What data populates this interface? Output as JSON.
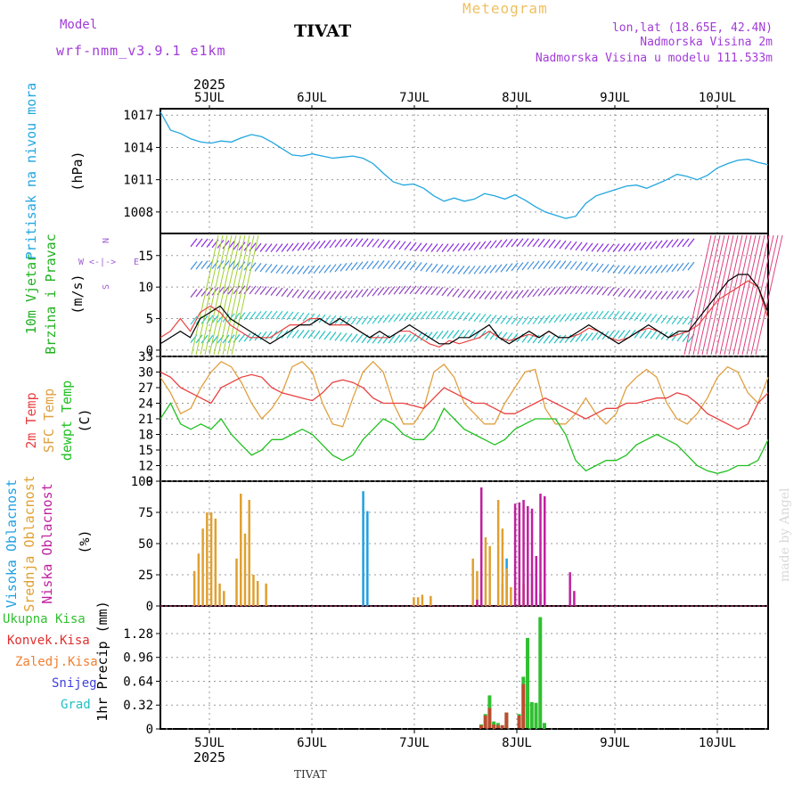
{
  "header": {
    "model_label": "Model",
    "model_name": "wrf-nmm_v3.9.1 e1km",
    "title": "TIVAT",
    "meteogram_label": "Meteogram",
    "lonlat": "lon,lat (18.65E, 42.4N)",
    "elevation": "Nadmorska Visina 2m",
    "model_elevation": "Nadmorska Visina u modelu 111.533m"
  },
  "footer": {
    "station": "TIVAT",
    "credit": "made by Angel"
  },
  "colors": {
    "pressure": "#22a6e0",
    "t2m": "#e84040",
    "sfc": "#e0a040",
    "dew": "#20c020",
    "high": "#20a0e0",
    "mid": "#e0a030",
    "low": "#c020a0",
    "total": "#30c030",
    "conv": "#e03030"
  },
  "chart_data": [
    {
      "id": "pressure",
      "type": "line",
      "ylabel": [
        "Pritisak na nivou mora",
        "(hPa)"
      ],
      "ylim": [
        1006,
        1017.6
      ],
      "yticks": [
        1008,
        1011,
        1014,
        1017
      ],
      "xlim": [
        0,
        144
      ],
      "series": [
        {
          "values": [
            1017.3,
            1015.6,
            1015.3,
            1014.8,
            1014.5,
            1014.4,
            1014.6,
            1014.5,
            1014.9,
            1015.2,
            1015.0,
            1014.5,
            1013.9,
            1013.3,
            1013.2,
            1013.4,
            1013.2,
            1013.0,
            1013.1,
            1013.2,
            1013.0,
            1012.5,
            1011.6,
            1010.8,
            1010.5,
            1010.6,
            1010.2,
            1009.5,
            1009.0,
            1009.3,
            1009.0,
            1009.2,
            1009.7,
            1009.5,
            1009.2,
            1009.6,
            1009.1,
            1008.5,
            1008.0,
            1007.7,
            1007.4,
            1007.6,
            1008.8,
            1009.5,
            1009.8,
            1010.1,
            1010.4,
            1010.5,
            1010.2,
            1010.6,
            1011.0,
            1011.5,
            1011.3,
            1011.0,
            1011.4,
            1012.1,
            1012.5,
            1012.8,
            1012.9,
            1012.6,
            1012.4
          ]
        }
      ]
    },
    {
      "id": "wind",
      "type": "line",
      "ylabel": [
        "10m Vjetar",
        "Brzina i Pravac",
        "(m/s)"
      ],
      "ylim": [
        -1,
        18.5
      ],
      "yticks": [
        0,
        5,
        10,
        15
      ],
      "compass": [
        "N",
        "W",
        "E",
        "S"
      ],
      "series": [
        {
          "values": [
            1,
            2,
            3,
            2,
            5,
            6,
            7,
            5,
            4,
            3,
            2,
            1,
            2,
            3,
            4,
            4,
            5,
            4,
            5,
            4,
            3,
            2,
            3,
            2,
            3,
            4,
            3,
            2,
            1,
            1,
            2,
            2,
            3,
            4,
            2,
            1,
            2,
            3,
            2,
            3,
            2,
            2,
            3,
            4,
            3,
            2,
            1,
            2,
            3,
            4,
            3,
            2,
            3,
            3,
            5,
            7,
            9,
            11,
            12,
            12,
            10,
            6
          ]
        },
        {
          "values": [
            2,
            3,
            5,
            3,
            6,
            7,
            6,
            4,
            3,
            2,
            2,
            2,
            3,
            4,
            4,
            5,
            5,
            4,
            4,
            4,
            3,
            2,
            2,
            2,
            3,
            3,
            2,
            1,
            0.5,
            1.5,
            1,
            1.5,
            2,
            3,
            2,
            1.5,
            2,
            2.5,
            2,
            3,
            2,
            2,
            2.5,
            3.5,
            3,
            2,
            1.5,
            2,
            3,
            3.5,
            3,
            2,
            2.5,
            3,
            4,
            6,
            8,
            9,
            10,
            11,
            10,
            5
          ]
        }
      ]
    },
    {
      "id": "temp",
      "type": "line",
      "ylabel": [
        "2m Temp",
        "SFC Temp",
        "dewpt Temp",
        "(C)"
      ],
      "ylim": [
        9,
        33
      ],
      "yticks": [
        9,
        12,
        15,
        18,
        21,
        24,
        27,
        30,
        33
      ],
      "series": [
        {
          "values": [
            30,
            29,
            27,
            26,
            25,
            24,
            27,
            28,
            29,
            29.5,
            29,
            27,
            26,
            25.5,
            25,
            24.5,
            26,
            28,
            28.5,
            28,
            27,
            25,
            24,
            24,
            24,
            23.5,
            23,
            25,
            27,
            26,
            25,
            24,
            24,
            23,
            22,
            22,
            23,
            24,
            25,
            24,
            23,
            22,
            21,
            22,
            23,
            23,
            24,
            24,
            24.5,
            25,
            25,
            26,
            25.5,
            24,
            22,
            21,
            20,
            19,
            20,
            24,
            26
          ]
        },
        {
          "values": [
            29,
            26,
            22,
            23,
            27,
            30,
            32,
            31,
            28,
            24,
            21,
            23,
            26,
            31,
            32,
            30,
            24,
            20,
            19.5,
            25,
            30,
            32,
            30,
            24,
            20,
            20,
            23,
            30,
            31.5,
            29,
            24,
            22,
            20,
            20,
            24,
            27,
            30,
            30.5,
            23,
            20,
            20,
            22,
            25,
            22,
            20,
            22,
            27,
            29,
            30.5,
            29,
            24,
            21,
            20,
            22,
            25,
            29,
            31,
            30,
            26,
            24,
            29
          ]
        },
        {
          "values": [
            21,
            24,
            20,
            19,
            20,
            19,
            21,
            18,
            16,
            14,
            15,
            17,
            17,
            18,
            19,
            18,
            16,
            14,
            13,
            14,
            17,
            19,
            21,
            20,
            18,
            17,
            17,
            19,
            23,
            21,
            19,
            18,
            17,
            16,
            17,
            19,
            20,
            21,
            21,
            21,
            18,
            13,
            11,
            12,
            13,
            13,
            14,
            16,
            17,
            18,
            17,
            16,
            14,
            12,
            11,
            10.5,
            11,
            12,
            12,
            13,
            17
          ]
        }
      ]
    },
    {
      "id": "cloud",
      "type": "bar",
      "ylabel": [
        "Visoka Oblacnost",
        "Srednja Oblacnost",
        "Niska Oblacnost",
        "(%)"
      ],
      "ylim": [
        0,
        100
      ],
      "yticks": [
        0,
        25,
        50,
        75,
        100
      ],
      "series": [
        {
          "name": "high",
          "x": [
            48,
            49,
            81,
            82,
            88,
            90
          ],
          "values": [
            92,
            76,
            18,
            38,
            25,
            10
          ]
        },
        {
          "name": "mid",
          "x": [
            8,
            9,
            10,
            11,
            12,
            13,
            14,
            15,
            18,
            19,
            20,
            21,
            22,
            23,
            25,
            60,
            61,
            62,
            64,
            74,
            75,
            77,
            78,
            80,
            81,
            82,
            83,
            85,
            86,
            88
          ],
          "values": [
            28,
            42,
            62,
            75,
            75,
            70,
            18,
            12,
            38,
            90,
            58,
            85,
            25,
            20,
            18,
            7,
            7,
            9,
            8,
            38,
            28,
            55,
            48,
            85,
            62,
            30,
            15,
            12,
            18,
            18
          ]
        },
        {
          "name": "low",
          "x": [
            75,
            76,
            84,
            85,
            86,
            87,
            88,
            89,
            90,
            91,
            97,
            98
          ],
          "values": [
            5,
            95,
            82,
            83,
            85,
            80,
            78,
            40,
            90,
            88,
            27,
            12
          ]
        }
      ]
    },
    {
      "id": "precip",
      "type": "bar",
      "ylabel": "1hr Precip (mm)",
      "ylim": [
        0,
        1.65
      ],
      "yticks": [
        0,
        0.32,
        0.64,
        0.96,
        1.28
      ],
      "legend": [
        "Ukupna Kisa",
        "Konvek.Kisa",
        "Zaledj.Kisa",
        "Snijeg",
        "Grad"
      ],
      "series": [
        {
          "name": "total",
          "x": [
            76,
            77,
            78,
            79,
            80,
            81,
            82,
            85,
            86,
            87,
            88,
            89,
            90,
            91
          ],
          "values": [
            0.06,
            0.2,
            0.45,
            0.1,
            0.08,
            0.05,
            0.22,
            0.2,
            0.7,
            1.22,
            0.36,
            0.35,
            1.5,
            0.08
          ]
        },
        {
          "name": "convective",
          "x": [
            76,
            77,
            78,
            79,
            80,
            81,
            82,
            85,
            86
          ],
          "values": [
            0.05,
            0.18,
            0.28,
            0.06,
            0.05,
            0.05,
            0.22,
            0.18,
            0.6
          ]
        }
      ]
    }
  ],
  "axes": {
    "top_year": "2025",
    "bottom_year": "2025",
    "day_labels": [
      "5JUL",
      "6JUL",
      "7JUL",
      "8JUL",
      "9JUL",
      "10JUL"
    ]
  }
}
